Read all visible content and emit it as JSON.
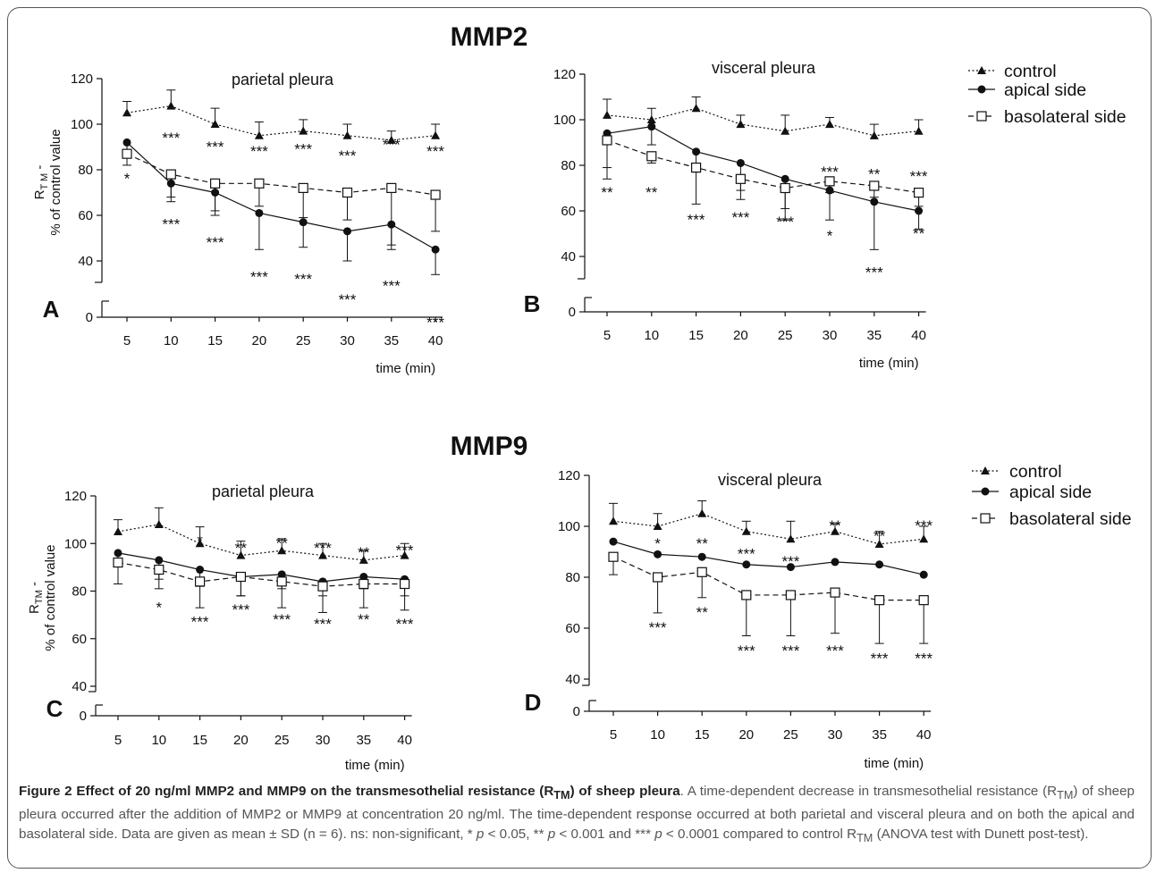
{
  "headings": {
    "top": "MMP2",
    "bottom": "MMP9"
  },
  "legend": {
    "control": "control",
    "apical": "apical side",
    "basolateral": "basolateral side"
  },
  "caption": {
    "title": "Figure 2 Effect of 20 ng/ml MMP2 and MMP9 on the transmesothelial resistance (R",
    "title_sub": "TM",
    "title_end": ") of sheep pleura",
    "text1": ". A time-dependent decrease in transmesothelial resistance (R",
    "text1_sub": "TM",
    "text2": ") of sheep pleura occurred after the addition of MMP2 or MMP9 at concentration 20 ng/ml. The time-dependent response occurred at both parietal and visceral pleura and on both the apical and basolateral side. Data are given as mean ± SD (n = 6). ns: non-significant, * ",
    "p1": "p",
    "text3": " < 0.05, ** ",
    "p2": "p",
    "text4": " < 0.001 and *** ",
    "p3": "p",
    "text5": " < 0.0001 compared to control R",
    "text5_sub": "TM",
    "text6": " (ANOVA test with Dunett post-test)."
  },
  "chart_data": [
    {
      "panel": "A",
      "title": "parietal pleura",
      "type": "line",
      "xlabel": "time (min)",
      "ylabel_main": "R",
      "ylabel_sub": "T M",
      "ylabel_dash": " -",
      "ylabel_line2": "% of control value",
      "x": [
        5,
        10,
        15,
        20,
        25,
        30,
        35,
        40
      ],
      "yticks": [
        0,
        40,
        60,
        80,
        100,
        120
      ],
      "ylim": [
        40,
        120
      ],
      "axis_break": true,
      "grid": false,
      "legend": "none",
      "series": [
        {
          "key": "control",
          "values": [
            105,
            108,
            100,
            95,
            97,
            95,
            93,
            95
          ],
          "err": [
            5,
            7,
            7,
            6,
            5,
            5,
            4,
            5
          ]
        },
        {
          "key": "apical",
          "values": [
            92,
            74,
            70,
            61,
            57,
            53,
            56,
            45
          ],
          "err": [
            4,
            6,
            10,
            16,
            11,
            13,
            11,
            11
          ]
        },
        {
          "key": "basolateral",
          "values": [
            87,
            78,
            74,
            74,
            72,
            70,
            72,
            69
          ],
          "err": [
            5,
            12,
            12,
            10,
            13,
            12,
            25,
            16
          ]
        }
      ],
      "annotations": [
        {
          "x": 5,
          "text": "*",
          "y": 77
        },
        {
          "x": 10,
          "text": "***",
          "y": 95
        },
        {
          "x": 15,
          "text": "***",
          "y": 91
        },
        {
          "x": 20,
          "text": "***",
          "y": 89
        },
        {
          "x": 25,
          "text": "***",
          "y": 90
        },
        {
          "x": 30,
          "text": "***",
          "y": 87
        },
        {
          "x": 35,
          "text": "***",
          "y": 92
        },
        {
          "x": 40,
          "text": "***",
          "y": 89
        },
        {
          "x": 10,
          "text": "***",
          "y": 57
        },
        {
          "x": 15,
          "text": "***",
          "y": 49
        },
        {
          "x": 20,
          "text": "***",
          "y": 34
        },
        {
          "x": 25,
          "text": "***",
          "y": 33
        },
        {
          "x": 30,
          "text": "***",
          "y": 24
        },
        {
          "x": 35,
          "text": "***",
          "y": 30
        },
        {
          "x": 40,
          "text": "***",
          "y": 14
        }
      ]
    },
    {
      "panel": "B",
      "title": "visceral pleura",
      "type": "line",
      "xlabel": "time (min)",
      "x": [
        5,
        10,
        15,
        20,
        25,
        30,
        35,
        40
      ],
      "yticks": [
        0,
        40,
        60,
        80,
        100,
        120
      ],
      "ylim": [
        40,
        120
      ],
      "axis_break": true,
      "grid": false,
      "legend": "top-right",
      "series": [
        {
          "key": "control",
          "values": [
            102,
            100,
            105,
            98,
            95,
            98,
            93,
            95
          ],
          "err": [
            7,
            5,
            5,
            4,
            7,
            3,
            5,
            5
          ]
        },
        {
          "key": "apical",
          "values": [
            94,
            97,
            86,
            81,
            74,
            69,
            64,
            60
          ],
          "err": [
            15,
            8,
            9,
            12,
            18,
            13,
            21,
            8
          ]
        },
        {
          "key": "basolateral",
          "values": [
            91,
            84,
            79,
            74,
            70,
            73,
            71,
            68
          ],
          "err": [
            17,
            3,
            16,
            9,
            9,
            5,
            5,
            6
          ]
        }
      ],
      "annotations": [
        {
          "x": 5,
          "text": "**",
          "y": 69
        },
        {
          "x": 10,
          "text": "**",
          "y": 69
        },
        {
          "x": 15,
          "text": "***",
          "y": 57
        },
        {
          "x": 20,
          "text": "***",
          "y": 58
        },
        {
          "x": 25,
          "text": "***",
          "y": 56
        },
        {
          "x": 30,
          "text": "***",
          "y": 78
        },
        {
          "x": 35,
          "text": "**",
          "y": 77
        },
        {
          "x": 40,
          "text": "***",
          "y": 76
        },
        {
          "x": 30,
          "text": "*",
          "y": 50
        },
        {
          "x": 35,
          "text": "***",
          "y": 34
        },
        {
          "x": 40,
          "text": "**",
          "y": 51
        }
      ]
    },
    {
      "panel": "C",
      "title": "parietal pleura",
      "type": "line",
      "xlabel": "time (min)",
      "ylabel_main": "R",
      "ylabel_sub": "TM",
      "ylabel_dash": " -",
      "ylabel_line2": "% of control value",
      "x": [
        5,
        10,
        15,
        20,
        25,
        30,
        35,
        40
      ],
      "yticks": [
        0,
        40,
        60,
        80,
        100,
        120
      ],
      "ylim": [
        40,
        120
      ],
      "axis_break": true,
      "grid": false,
      "legend": "none",
      "series": [
        {
          "key": "control",
          "values": [
            105,
            108,
            100,
            95,
            97,
            95,
            93,
            95
          ],
          "err": [
            5,
            7,
            7,
            6,
            5,
            5,
            4,
            5
          ]
        },
        {
          "key": "apical",
          "values": [
            96,
            93,
            89,
            86,
            87,
            84,
            86,
            85
          ],
          "err": [
            5,
            8,
            7,
            8,
            6,
            6,
            5,
            7
          ]
        },
        {
          "key": "basolateral",
          "values": [
            92,
            89,
            84,
            86,
            84,
            82,
            83,
            83
          ],
          "err": [
            9,
            8,
            11,
            8,
            11,
            11,
            10,
            11
          ]
        }
      ],
      "annotations": [
        {
          "x": 15,
          "text": "*",
          "y": 102
        },
        {
          "x": 20,
          "text": "**",
          "y": 99
        },
        {
          "x": 25,
          "text": "**",
          "y": 101
        },
        {
          "x": 30,
          "text": "***",
          "y": 99
        },
        {
          "x": 35,
          "text": "**",
          "y": 97
        },
        {
          "x": 40,
          "text": "***",
          "y": 98
        },
        {
          "x": 10,
          "text": "*",
          "y": 74
        },
        {
          "x": 15,
          "text": "***",
          "y": 68
        },
        {
          "x": 20,
          "text": "***",
          "y": 73
        },
        {
          "x": 25,
          "text": "***",
          "y": 69
        },
        {
          "x": 30,
          "text": "***",
          "y": 67
        },
        {
          "x": 35,
          "text": "**",
          "y": 69
        },
        {
          "x": 40,
          "text": "***",
          "y": 67
        }
      ]
    },
    {
      "panel": "D",
      "title": "visceral pleura",
      "type": "line",
      "xlabel": "time (min)",
      "x": [
        5,
        10,
        15,
        20,
        25,
        30,
        35,
        40
      ],
      "yticks": [
        0,
        40,
        60,
        80,
        100,
        120
      ],
      "ylim": [
        40,
        120
      ],
      "axis_break": true,
      "grid": false,
      "legend": "top-right",
      "series": [
        {
          "key": "control",
          "values": [
            102,
            100,
            105,
            98,
            95,
            98,
            93,
            95
          ],
          "err": [
            7,
            5,
            5,
            4,
            7,
            3,
            5,
            5
          ]
        },
        {
          "key": "apical",
          "values": [
            94,
            89,
            88,
            85,
            84,
            86,
            85,
            81
          ],
          "err": [
            0,
            0,
            0,
            0,
            0,
            0,
            0,
            0
          ]
        },
        {
          "key": "basolateral",
          "values": [
            88,
            80,
            82,
            73,
            73,
            74,
            71,
            71
          ],
          "err": [
            7,
            14,
            10,
            16,
            16,
            16,
            17,
            17
          ]
        }
      ],
      "annotations": [
        {
          "x": 10,
          "text": "*",
          "y": 94
        },
        {
          "x": 15,
          "text": "**",
          "y": 94
        },
        {
          "x": 20,
          "text": "***",
          "y": 90
        },
        {
          "x": 25,
          "text": "***",
          "y": 87
        },
        {
          "x": 30,
          "text": "**",
          "y": 101
        },
        {
          "x": 35,
          "text": "**",
          "y": 97
        },
        {
          "x": 40,
          "text": "***",
          "y": 101
        },
        {
          "x": 10,
          "text": "***",
          "y": 61
        },
        {
          "x": 15,
          "text": "**",
          "y": 67
        },
        {
          "x": 20,
          "text": "***",
          "y": 52
        },
        {
          "x": 25,
          "text": "***",
          "y": 52
        },
        {
          "x": 30,
          "text": "***",
          "y": 52
        },
        {
          "x": 35,
          "text": "***",
          "y": 49
        },
        {
          "x": 40,
          "text": "***",
          "y": 49
        }
      ]
    }
  ]
}
